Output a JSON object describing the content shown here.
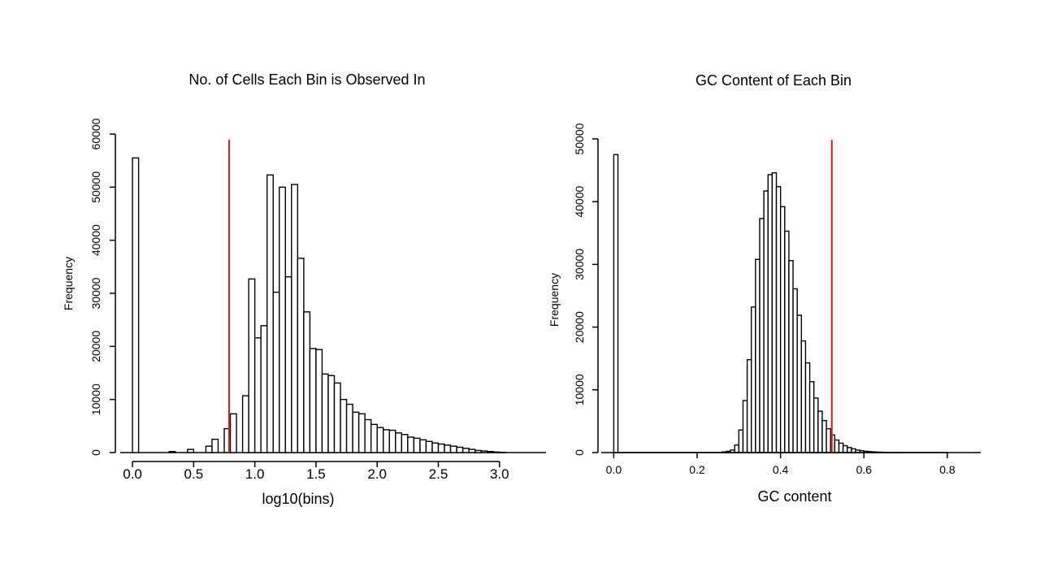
{
  "chart_data": [
    {
      "type": "bar",
      "title": "No. of Cells Each Bin is Observed In",
      "xlabel": "log10(bins)",
      "ylabel": "Frequency",
      "xlim": [
        -0.1,
        3.38
      ],
      "ylim": [
        0,
        60000
      ],
      "x_ticks": [
        0.0,
        0.5,
        1.0,
        1.5,
        2.0,
        2.5,
        3.0
      ],
      "x_tick_labels": [
        "0.0",
        "0.5",
        "1.0",
        "1.5",
        "2.0",
        "2.5",
        "3.0"
      ],
      "y_ticks": [
        0,
        10000,
        20000,
        30000,
        40000,
        50000,
        60000
      ],
      "y_tick_labels": [
        "0",
        "10000",
        "20000",
        "30000",
        "40000",
        "50000",
        "60000"
      ],
      "bin_width": 0.05,
      "bins_start": [
        0.0,
        0.05,
        0.1,
        0.15,
        0.2,
        0.25,
        0.3,
        0.35,
        0.4,
        0.45,
        0.5,
        0.55,
        0.6,
        0.65,
        0.7,
        0.75,
        0.8,
        0.85,
        0.9,
        0.95,
        1.0,
        1.05,
        1.1,
        1.15,
        1.2,
        1.25,
        1.3,
        1.35,
        1.4,
        1.45,
        1.5,
        1.55,
        1.6,
        1.65,
        1.7,
        1.75,
        1.8,
        1.85,
        1.9,
        1.95,
        2.0,
        2.05,
        2.1,
        2.15,
        2.2,
        2.25,
        2.3,
        2.35,
        2.4,
        2.45,
        2.5,
        2.55,
        2.6,
        2.65,
        2.7,
        2.75,
        2.8,
        2.85,
        2.9,
        2.95,
        3.0,
        3.05,
        3.1,
        3.15,
        3.2,
        3.25,
        3.3
      ],
      "values": [
        55500,
        0,
        0,
        0,
        0,
        0,
        200,
        0,
        0,
        600,
        0,
        0,
        1200,
        2500,
        0,
        4500,
        7300,
        0,
        10700,
        32700,
        21600,
        23900,
        52300,
        30200,
        50000,
        33100,
        50500,
        36600,
        26500,
        19600,
        19400,
        14800,
        14500,
        13100,
        10000,
        9100,
        7600,
        7300,
        6200,
        5300,
        4700,
        4300,
        4200,
        3700,
        3400,
        2900,
        2700,
        2400,
        2100,
        1800,
        1600,
        1400,
        1200,
        1000,
        800,
        600,
        400,
        300,
        200,
        100,
        50,
        0,
        0,
        0,
        0,
        0,
        0
      ],
      "threshold": 0.79,
      "threshold_color": "#e41a1c"
    },
    {
      "type": "bar",
      "title": "GC Content of Each Bin",
      "xlabel": "GC content",
      "ylabel": "Frequency",
      "xlim": [
        -0.03,
        0.88
      ],
      "ylim": [
        0,
        50000
      ],
      "x_ticks": [
        0.0,
        0.2,
        0.4,
        0.6,
        0.8
      ],
      "x_tick_labels": [
        "0.0",
        "0.2",
        "0.4",
        "0.6",
        "0.8"
      ],
      "y_ticks": [
        0,
        10000,
        20000,
        30000,
        40000,
        50000
      ],
      "y_tick_labels": [
        "0",
        "10000",
        "20000",
        "30000",
        "40000",
        "50000"
      ],
      "bin_width": 0.01,
      "bins_start": [
        0.0,
        0.26,
        0.27,
        0.28,
        0.29,
        0.3,
        0.31,
        0.32,
        0.33,
        0.34,
        0.35,
        0.36,
        0.37,
        0.38,
        0.39,
        0.4,
        0.41,
        0.42,
        0.43,
        0.44,
        0.45,
        0.46,
        0.47,
        0.48,
        0.49,
        0.5,
        0.51,
        0.52,
        0.53,
        0.54,
        0.55,
        0.56,
        0.57,
        0.58,
        0.59,
        0.6,
        0.61,
        0.62,
        0.63,
        0.64,
        0.65,
        0.66,
        0.67,
        0.68,
        0.69,
        0.7,
        0.71,
        0.72,
        0.73,
        0.74,
        0.75,
        0.76,
        0.77,
        0.78,
        0.79
      ],
      "values": [
        47500,
        100,
        200,
        400,
        1200,
        3600,
        8300,
        14800,
        23200,
        30800,
        37300,
        41700,
        44300,
        44600,
        42400,
        39200,
        35300,
        30600,
        26100,
        21900,
        17800,
        14300,
        11300,
        8700,
        6600,
        5100,
        3800,
        2800,
        2000,
        1500,
        1100,
        800,
        600,
        400,
        300,
        200,
        150,
        100,
        70,
        50,
        30,
        20,
        10,
        10,
        0,
        0,
        0,
        0,
        0,
        0,
        0,
        0,
        0,
        0,
        0
      ],
      "threshold": 0.523,
      "threshold_color": "#e41a1c"
    }
  ]
}
